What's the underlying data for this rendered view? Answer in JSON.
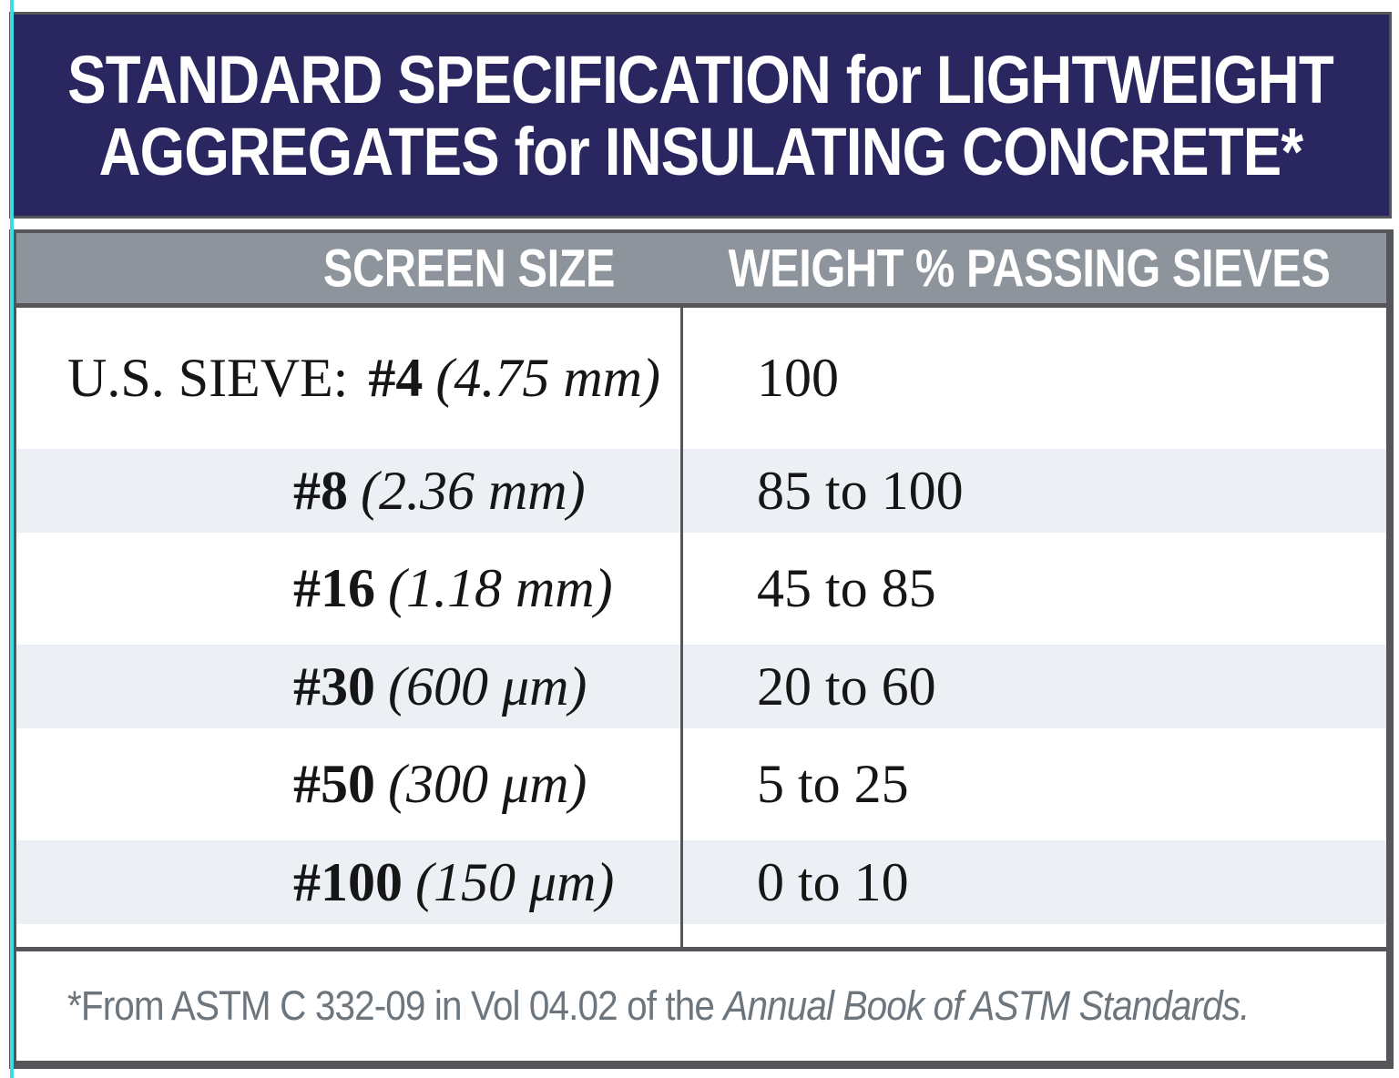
{
  "title": {
    "line1": "STANDARD SPECIFICATION for LIGHTWEIGHT",
    "line2": "AGGREGATES for INSULATING CONCRETE*"
  },
  "table": {
    "columns": [
      "SCREEN SIZE",
      "WEIGHT % PASSING SIEVES"
    ],
    "row_label_prefix": "U.S. SIEVE:",
    "rows": [
      {
        "sieve": "#4",
        "size": "(4.75 mm)",
        "passing": "100"
      },
      {
        "sieve": "#8",
        "size": "(2.36 mm)",
        "passing": "85 to 100"
      },
      {
        "sieve": "#16",
        "size": "(1.18 mm)",
        "passing": "45 to 85"
      },
      {
        "sieve": "#30",
        "size": "(600 μm)",
        "passing": "20 to 60"
      },
      {
        "sieve": "#50",
        "size": "(300 μm)",
        "passing": "5 to 25"
      },
      {
        "sieve": "#100",
        "size": "(150 μm)",
        "passing": "0 to 10"
      }
    ]
  },
  "footnote": {
    "text": "*From ASTM C 332-09 in Vol 04.02 of the ",
    "italic": "Annual Book of ASTM Standards."
  },
  "colors": {
    "banner_bg": "#2a265f",
    "header_bg": "#8e949c",
    "border": "#54565a",
    "stripe": "#ecf0f4",
    "text": "#161616",
    "header_text": "#ffffff",
    "footnote_text": "#6d757d",
    "accent_line": "#3adde3"
  }
}
